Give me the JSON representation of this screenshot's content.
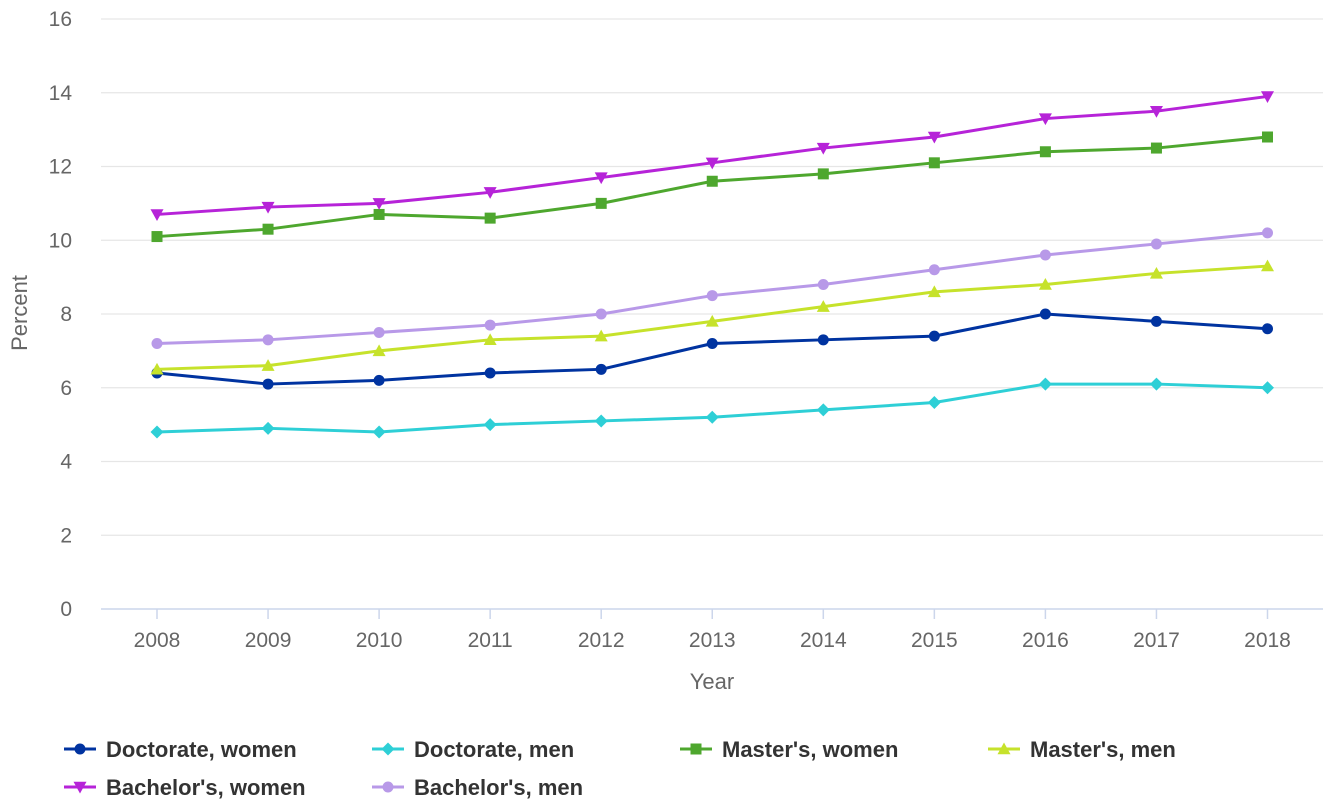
{
  "chart_data": {
    "type": "line",
    "title": "",
    "xlabel": "Year",
    "ylabel": "Percent",
    "x": [
      "2008",
      "2009",
      "2010",
      "2011",
      "2012",
      "2013",
      "2014",
      "2015",
      "2016",
      "2017",
      "2018"
    ],
    "ylim": [
      0,
      16
    ],
    "yticks": [
      0,
      2,
      4,
      6,
      8,
      10,
      12,
      14,
      16
    ],
    "grid": true,
    "legend_position": "bottom",
    "series": [
      {
        "name": "Doctorate, women",
        "color": "#0033a0",
        "marker": "circle",
        "values": [
          6.4,
          6.1,
          6.2,
          6.4,
          6.5,
          7.2,
          7.3,
          7.4,
          8.0,
          7.8,
          7.6
        ]
      },
      {
        "name": "Doctorate, men",
        "color": "#2ecfd6",
        "marker": "diamond",
        "values": [
          4.8,
          4.9,
          4.8,
          5.0,
          5.1,
          5.2,
          5.4,
          5.6,
          6.1,
          6.1,
          6.0
        ]
      },
      {
        "name": "Master's, women",
        "color": "#4ea72e",
        "marker": "square",
        "values": [
          10.1,
          10.3,
          10.7,
          10.6,
          11.0,
          11.6,
          11.8,
          12.1,
          12.4,
          12.5,
          12.8
        ]
      },
      {
        "name": "Master's, men",
        "color": "#c6e22b",
        "marker": "triangle-up",
        "values": [
          6.5,
          6.6,
          7.0,
          7.3,
          7.4,
          7.8,
          8.2,
          8.6,
          8.8,
          9.1,
          9.3
        ]
      },
      {
        "name": "Bachelor's, women",
        "color": "#b623d8",
        "marker": "triangle-down",
        "values": [
          10.7,
          10.9,
          11.0,
          11.3,
          11.7,
          12.1,
          12.5,
          12.8,
          13.3,
          13.5,
          13.9
        ]
      },
      {
        "name": "Bachelor's, men",
        "color": "#b899e8",
        "marker": "circle",
        "values": [
          7.2,
          7.3,
          7.5,
          7.7,
          8.0,
          8.5,
          8.8,
          9.2,
          9.6,
          9.9,
          10.2
        ]
      }
    ]
  }
}
